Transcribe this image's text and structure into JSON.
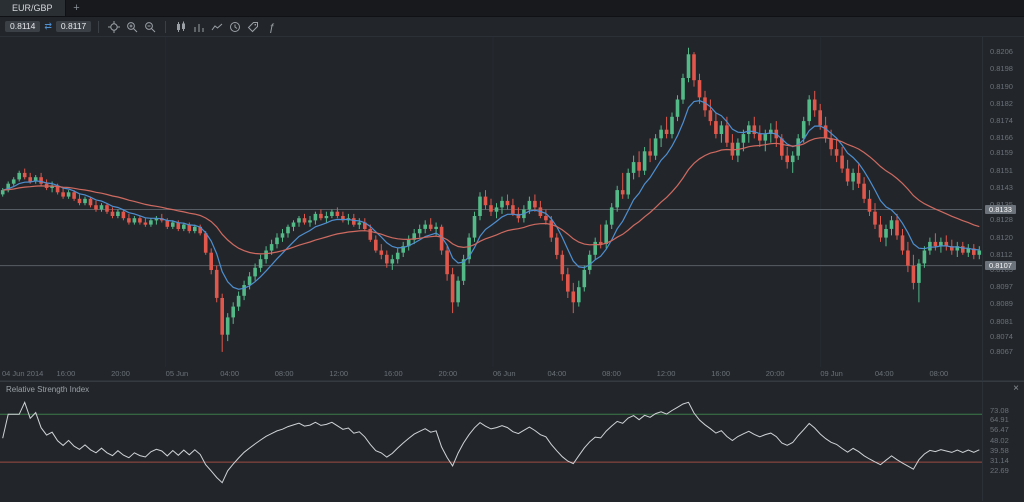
{
  "tabbar": {
    "active_tab": "EUR/GBP",
    "new_tab": "+"
  },
  "toolbar": {
    "bid": "0.8114",
    "ask": "0.8117",
    "spread_icon": "⇄",
    "icon_groups": [
      [
        "crosshair",
        "zoom-in",
        "zoom-out"
      ],
      [
        "candlestick-chart",
        "bar-chart",
        "line-chart",
        "timeframe-clock",
        "price-tag",
        "indicator-function"
      ]
    ]
  },
  "price_axis": {
    "labels": [
      "0.8206",
      "0.8198",
      "0.8190",
      "0.8182",
      "0.8174",
      "0.8166",
      "0.8159",
      "0.8151",
      "0.8143",
      "0.8135",
      "0.8128",
      "0.8120",
      "0.8112",
      "0.8105",
      "0.8097",
      "0.8089",
      "0.8081",
      "0.8074",
      "0.8067"
    ],
    "badges": [
      "0.8133",
      "0.8107"
    ]
  },
  "time_axis": {
    "labels": [
      "04 Jun 2014",
      "16:00",
      "20:00",
      "05 Jun",
      "04:00",
      "08:00",
      "12:00",
      "16:00",
      "20:00",
      "06 Jun",
      "04:00",
      "08:00",
      "12:00",
      "16:00",
      "20:00",
      "09 Jun",
      "04:00",
      "08:00"
    ]
  },
  "rsi": {
    "title": "Relative Strength Index",
    "close_label": "×",
    "scale_labels": [
      "73.08",
      "64.91",
      "56.47",
      "48.02",
      "39.58",
      "31.14",
      "22.69"
    ],
    "overbought": 70,
    "oversold": 30,
    "period": 14
  },
  "colors": {
    "up": "#53b987",
    "down": "#e2574b",
    "ma_fast": "#4f8fd0",
    "ma_slow": "#cf6a60",
    "level_line": "#575d64",
    "rsi_line": "#d0d3d6",
    "overbought_line": "#3c7a4a",
    "oversold_line": "#9c4a42",
    "grid": "#262b31"
  },
  "chart_data": {
    "type": "candlestick",
    "symbol": "EUR/GBP",
    "note": "OHLC values are pips relative to 0.8000 (e.g. 142 = 0.8142)",
    "base_price": 0.8,
    "price_lines_pips": [
      133,
      107
    ],
    "ma_fast_period": 8,
    "ma_slow_period": 28,
    "candles": [
      [
        140,
        143,
        139,
        142
      ],
      [
        142,
        146,
        141,
        145
      ],
      [
        145,
        148,
        144,
        147
      ],
      [
        147,
        151,
        146,
        150
      ],
      [
        150,
        152,
        147,
        148
      ],
      [
        148,
        150,
        145,
        146
      ],
      [
        146,
        149,
        145,
        148
      ],
      [
        148,
        150,
        144,
        145
      ],
      [
        145,
        147,
        142,
        143
      ],
      [
        143,
        146,
        141,
        144
      ],
      [
        144,
        145,
        140,
        141
      ],
      [
        141,
        143,
        138,
        139
      ],
      [
        139,
        142,
        138,
        141
      ],
      [
        141,
        142,
        137,
        138
      ],
      [
        138,
        140,
        135,
        136
      ],
      [
        136,
        139,
        135,
        138
      ],
      [
        138,
        139,
        134,
        135
      ],
      [
        135,
        137,
        132,
        133
      ],
      [
        133,
        136,
        132,
        135
      ],
      [
        135,
        136,
        131,
        132
      ],
      [
        132,
        134,
        129,
        130
      ],
      [
        130,
        133,
        129,
        132
      ],
      [
        132,
        133,
        128,
        129
      ],
      [
        129,
        131,
        126,
        127
      ],
      [
        127,
        130,
        126,
        129
      ],
      [
        129,
        130,
        126,
        127
      ],
      [
        127,
        129,
        125,
        126
      ],
      [
        126,
        129,
        125,
        128
      ],
      [
        128,
        130,
        126,
        129
      ],
      [
        129,
        131,
        127,
        128
      ],
      [
        128,
        129,
        124,
        125
      ],
      [
        125,
        128,
        124,
        127
      ],
      [
        127,
        128,
        123,
        124
      ],
      [
        124,
        127,
        123,
        126
      ],
      [
        126,
        127,
        122,
        123
      ],
      [
        123,
        126,
        122,
        125
      ],
      [
        125,
        126,
        121,
        122
      ],
      [
        122,
        123,
        112,
        113
      ],
      [
        113,
        115,
        103,
        105
      ],
      [
        105,
        107,
        90,
        92
      ],
      [
        92,
        94,
        67,
        75
      ],
      [
        75,
        85,
        72,
        83
      ],
      [
        83,
        90,
        80,
        88
      ],
      [
        88,
        95,
        86,
        93
      ],
      [
        93,
        100,
        91,
        98
      ],
      [
        98,
        104,
        96,
        102
      ],
      [
        102,
        108,
        100,
        106
      ],
      [
        106,
        112,
        104,
        110
      ],
      [
        110,
        116,
        108,
        114
      ],
      [
        114,
        119,
        112,
        117
      ],
      [
        117,
        122,
        115,
        120
      ],
      [
        120,
        124,
        118,
        122
      ],
      [
        122,
        126,
        120,
        125
      ],
      [
        125,
        128,
        123,
        127
      ],
      [
        127,
        130,
        125,
        129
      ],
      [
        129,
        131,
        126,
        127
      ],
      [
        127,
        130,
        125,
        128
      ],
      [
        128,
        132,
        126,
        131
      ],
      [
        131,
        133,
        128,
        129
      ],
      [
        129,
        132,
        127,
        130
      ],
      [
        130,
        133,
        129,
        132
      ],
      [
        132,
        134,
        129,
        130
      ],
      [
        130,
        132,
        127,
        128
      ],
      [
        128,
        131,
        126,
        129
      ],
      [
        129,
        131,
        125,
        126
      ],
      [
        126,
        129,
        124,
        127
      ],
      [
        127,
        129,
        123,
        124
      ],
      [
        124,
        126,
        118,
        119
      ],
      [
        119,
        121,
        113,
        114
      ],
      [
        114,
        117,
        110,
        112
      ],
      [
        112,
        114,
        106,
        108
      ],
      [
        108,
        112,
        105,
        110
      ],
      [
        110,
        115,
        108,
        113
      ],
      [
        113,
        118,
        111,
        116
      ],
      [
        116,
        121,
        114,
        119
      ],
      [
        119,
        124,
        117,
        122
      ],
      [
        122,
        126,
        120,
        124
      ],
      [
        124,
        128,
        122,
        126
      ],
      [
        126,
        129,
        123,
        124
      ],
      [
        124,
        127,
        121,
        125
      ],
      [
        125,
        126,
        112,
        114
      ],
      [
        114,
        116,
        100,
        103
      ],
      [
        103,
        106,
        85,
        90
      ],
      [
        90,
        102,
        88,
        100
      ],
      [
        100,
        112,
        98,
        110
      ],
      [
        110,
        122,
        108,
        120
      ],
      [
        120,
        132,
        118,
        130
      ],
      [
        130,
        141,
        128,
        139
      ],
      [
        139,
        142,
        133,
        135
      ],
      [
        135,
        138,
        130,
        132
      ],
      [
        132,
        136,
        129,
        134
      ],
      [
        134,
        139,
        131,
        137
      ],
      [
        137,
        140,
        133,
        135
      ],
      [
        135,
        138,
        130,
        131
      ],
      [
        131,
        134,
        127,
        129
      ],
      [
        129,
        135,
        127,
        133
      ],
      [
        133,
        139,
        131,
        137
      ],
      [
        137,
        140,
        132,
        134
      ],
      [
        134,
        137,
        129,
        130
      ],
      [
        130,
        133,
        126,
        128
      ],
      [
        128,
        130,
        118,
        120
      ],
      [
        120,
        122,
        110,
        112
      ],
      [
        112,
        114,
        100,
        103
      ],
      [
        103,
        106,
        92,
        95
      ],
      [
        95,
        99,
        85,
        90
      ],
      [
        90,
        100,
        88,
        97
      ],
      [
        97,
        107,
        95,
        105
      ],
      [
        105,
        114,
        103,
        112
      ],
      [
        112,
        120,
        110,
        118
      ],
      [
        118,
        126,
        115,
        117
      ],
      [
        117,
        128,
        115,
        126
      ],
      [
        126,
        136,
        124,
        134
      ],
      [
        134,
        144,
        132,
        142
      ],
      [
        142,
        150,
        138,
        140
      ],
      [
        140,
        152,
        138,
        150
      ],
      [
        150,
        158,
        147,
        155
      ],
      [
        155,
        160,
        148,
        151
      ],
      [
        151,
        162,
        149,
        160
      ],
      [
        160,
        166,
        155,
        158
      ],
      [
        158,
        168,
        156,
        166
      ],
      [
        166,
        172,
        162,
        170
      ],
      [
        170,
        176,
        166,
        168
      ],
      [
        168,
        178,
        166,
        176
      ],
      [
        176,
        186,
        174,
        184
      ],
      [
        184,
        196,
        182,
        194
      ],
      [
        194,
        208,
        192,
        205
      ],
      [
        205,
        206,
        190,
        193
      ],
      [
        193,
        196,
        182,
        185
      ],
      [
        185,
        188,
        176,
        179
      ],
      [
        179,
        184,
        172,
        174
      ],
      [
        174,
        178,
        166,
        168
      ],
      [
        168,
        174,
        164,
        172
      ],
      [
        172,
        176,
        162,
        164
      ],
      [
        164,
        168,
        156,
        158
      ],
      [
        158,
        166,
        155,
        164
      ],
      [
        164,
        170,
        160,
        168
      ],
      [
        168,
        174,
        164,
        172
      ],
      [
        172,
        176,
        166,
        168
      ],
      [
        168,
        172,
        162,
        165
      ],
      [
        165,
        170,
        160,
        168
      ],
      [
        168,
        173,
        164,
        170
      ],
      [
        170,
        174,
        162,
        166
      ],
      [
        166,
        168,
        156,
        158
      ],
      [
        158,
        162,
        152,
        155
      ],
      [
        155,
        160,
        150,
        158
      ],
      [
        158,
        168,
        156,
        166
      ],
      [
        166,
        176,
        164,
        174
      ],
      [
        174,
        186,
        172,
        184
      ],
      [
        184,
        188,
        176,
        179
      ],
      [
        179,
        182,
        170,
        172
      ],
      [
        172,
        176,
        164,
        166
      ],
      [
        166,
        170,
        158,
        161
      ],
      [
        161,
        166,
        155,
        158
      ],
      [
        158,
        162,
        150,
        152
      ],
      [
        152,
        156,
        144,
        146
      ],
      [
        146,
        152,
        142,
        150
      ],
      [
        150,
        154,
        143,
        145
      ],
      [
        145,
        148,
        136,
        138
      ],
      [
        138,
        142,
        130,
        132
      ],
      [
        132,
        136,
        124,
        126
      ],
      [
        126,
        130,
        118,
        120
      ],
      [
        120,
        126,
        116,
        124
      ],
      [
        124,
        130,
        121,
        128
      ],
      [
        128,
        131,
        119,
        121
      ],
      [
        121,
        124,
        112,
        114
      ],
      [
        114,
        118,
        104,
        107
      ],
      [
        107,
        112,
        96,
        99
      ],
      [
        99,
        110,
        90,
        108
      ],
      [
        108,
        116,
        106,
        114
      ],
      [
        114,
        120,
        112,
        118
      ],
      [
        118,
        122,
        114,
        116
      ],
      [
        116,
        120,
        113,
        118
      ],
      [
        118,
        121,
        114,
        116
      ],
      [
        116,
        119,
        112,
        114
      ],
      [
        114,
        118,
        111,
        116
      ],
      [
        116,
        118,
        112,
        113
      ],
      [
        113,
        117,
        111,
        115
      ],
      [
        115,
        117,
        110,
        112
      ],
      [
        112,
        116,
        110,
        114
      ]
    ]
  }
}
